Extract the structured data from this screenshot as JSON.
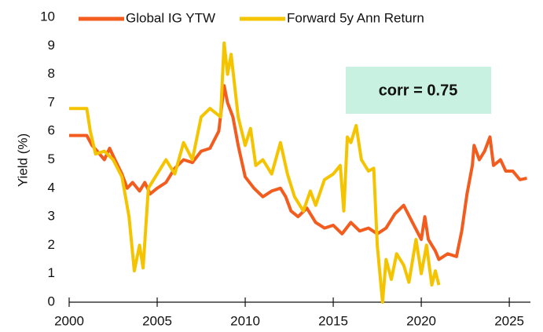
{
  "chart_data": {
    "type": "line",
    "y_label": "Yield (%)",
    "annotation": "corr = 0.75",
    "annotation_color": "#c9f1e1",
    "legend": "top",
    "xlim": [
      2000,
      2026.2
    ],
    "xticks": [
      2000,
      2005,
      2010,
      2015,
      2020,
      2025
    ],
    "ylim": [
      0,
      10
    ],
    "yticks": [
      0,
      1,
      2,
      3,
      4,
      5,
      6,
      7,
      8,
      9,
      10
    ],
    "series": [
      {
        "name": "Global IG YTW",
        "color": "#f25c1e",
        "x": [
          2000,
          2000.5,
          2001,
          2001.3,
          2001.6,
          2002,
          2002.3,
          2002.6,
          2003,
          2003.3,
          2003.6,
          2004,
          2004.3,
          2004.6,
          2005,
          2005.5,
          2006,
          2006.5,
          2007,
          2007.5,
          2008,
          2008.5,
          2008.8,
          2009,
          2009.3,
          2009.6,
          2010,
          2010.5,
          2011,
          2011.5,
          2012,
          2012.3,
          2012.6,
          2013,
          2013.5,
          2014,
          2014.5,
          2015,
          2015.5,
          2016,
          2016.5,
          2017,
          2017.5,
          2018,
          2018.5,
          2019,
          2019.5,
          2020,
          2020.2,
          2020.4,
          2020.8,
          2021,
          2021.5,
          2022,
          2022.3,
          2022.6,
          2022.9,
          2023,
          2023.3,
          2023.6,
          2023.9,
          2024.1,
          2024.5,
          2024.8,
          2025.2,
          2025.6,
          2026
        ],
        "values": [
          5.85,
          5.85,
          5.85,
          5.5,
          5.3,
          5.0,
          5.4,
          5.0,
          4.5,
          4.0,
          4.2,
          3.9,
          4.2,
          3.8,
          4.0,
          4.2,
          4.7,
          5.0,
          4.9,
          5.3,
          5.4,
          6.0,
          7.6,
          7.0,
          6.5,
          5.5,
          4.4,
          4.0,
          3.7,
          3.9,
          4.0,
          3.7,
          3.2,
          3.0,
          3.3,
          2.8,
          2.6,
          2.7,
          2.4,
          2.8,
          2.5,
          2.6,
          2.4,
          2.6,
          3.1,
          3.4,
          2.8,
          2.2,
          3.0,
          2.2,
          1.8,
          1.5,
          1.7,
          1.6,
          2.5,
          3.8,
          4.8,
          5.5,
          5.0,
          5.3,
          5.8,
          4.8,
          5.0,
          4.6,
          4.6,
          4.3,
          4.35
        ]
      },
      {
        "name": "Forward 5y Ann Return",
        "color": "#f5c400",
        "x": [
          2000,
          2001,
          2001.2,
          2001.5,
          2002,
          2002.5,
          2003,
          2003.4,
          2003.7,
          2004,
          2004.2,
          2004.5,
          2005,
          2005.5,
          2006,
          2006.5,
          2007,
          2007.5,
          2008,
          2008.6,
          2008.8,
          2009,
          2009.2,
          2009.6,
          2010,
          2010.3,
          2010.6,
          2011,
          2011.5,
          2012,
          2012.4,
          2012.8,
          2013.3,
          2013.7,
          2014,
          2014.5,
          2015,
          2015.4,
          2015.6,
          2015.8,
          2016,
          2016.3,
          2016.6,
          2017,
          2017.3,
          2017.5,
          2017.8,
          2018,
          2018.3,
          2018.6,
          2019,
          2019.3,
          2019.7,
          2020,
          2020.3,
          2020.6,
          2020.8,
          2021
        ],
        "values": [
          6.8,
          6.8,
          6.0,
          5.2,
          5.3,
          5.0,
          4.4,
          3.0,
          1.1,
          2.0,
          1.2,
          4.0,
          4.5,
          5.0,
          4.5,
          5.6,
          5.0,
          6.5,
          6.8,
          6.5,
          9.1,
          8.0,
          8.7,
          6.5,
          5.5,
          6.1,
          4.8,
          5.0,
          4.5,
          5.6,
          4.5,
          3.7,
          3.2,
          3.9,
          3.4,
          4.3,
          4.5,
          4.8,
          3.2,
          5.8,
          5.6,
          6.2,
          5.0,
          4.6,
          4.7,
          2.0,
          0.0,
          1.5,
          0.8,
          1.7,
          1.3,
          0.7,
          2.2,
          1.0,
          2.0,
          0.6,
          1.1,
          0.6
        ]
      }
    ]
  }
}
